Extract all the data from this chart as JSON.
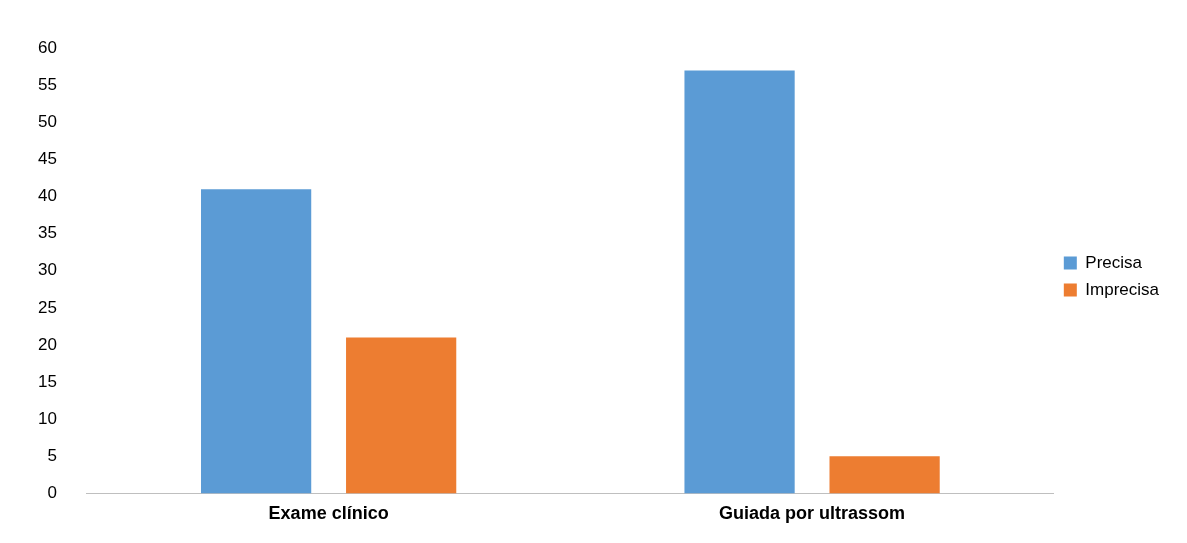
{
  "chart_data": {
    "type": "bar",
    "categories": [
      "Exame clínico",
      "Guiada por ultrassom"
    ],
    "series": [
      {
        "name": "Precisa",
        "color": "#5b9bd5",
        "values": [
          41,
          57
        ]
      },
      {
        "name": "Imprecisa",
        "color": "#ed7d31",
        "values": [
          21,
          5
        ]
      }
    ],
    "ylim": [
      0,
      60
    ],
    "yticks": [
      0,
      5,
      10,
      15,
      20,
      25,
      30,
      35,
      40,
      45,
      50,
      55,
      60
    ],
    "grid": false,
    "legend": "right"
  }
}
